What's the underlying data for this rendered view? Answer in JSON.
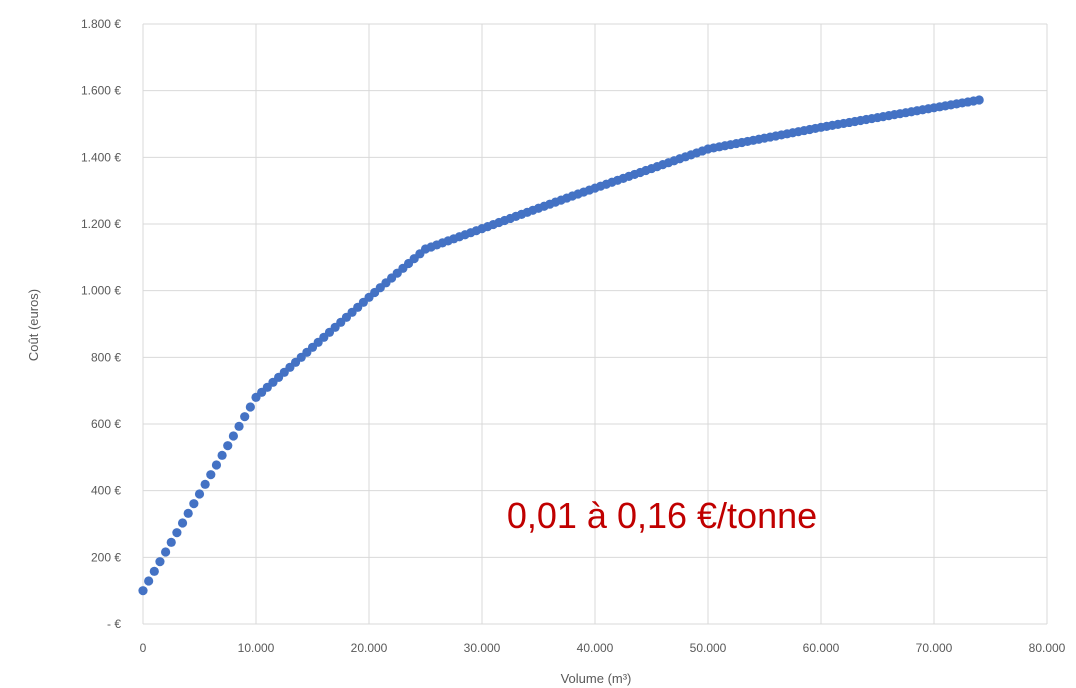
{
  "chart_data": {
    "type": "scatter",
    "xlabel": "Volume (m³)",
    "ylabel": "Coût (euros)",
    "xlim": [
      0,
      80000
    ],
    "ylim": [
      0,
      1800
    ],
    "x_ticks": [
      "0",
      "10.000",
      "20.000",
      "30.000",
      "40.000",
      "50.000",
      "60.000",
      "70.000",
      "80.000"
    ],
    "y_ticks": [
      "-  €",
      "200 €",
      "400 €",
      "600 €",
      "800 €",
      "1.000 €",
      "1.200 €",
      "1.400 €",
      "1.600 €",
      "1.800 €"
    ],
    "annotation": "0,01 à 0,16 €/tonne",
    "grid": true,
    "marker_color": "#4472C4",
    "annotation_color": "#C00000",
    "breakpoints": [
      {
        "x": 0,
        "y": 100
      },
      {
        "x": 10000,
        "y": 680
      },
      {
        "x": 15000,
        "y": 830
      },
      {
        "x": 20000,
        "y": 980
      },
      {
        "x": 25000,
        "y": 1125
      },
      {
        "x": 38500,
        "y": 1290
      },
      {
        "x": 50000,
        "y": 1425
      },
      {
        "x": 60000,
        "y": 1490
      },
      {
        "x": 74000,
        "y": 1572
      }
    ],
    "point_step": 500
  }
}
